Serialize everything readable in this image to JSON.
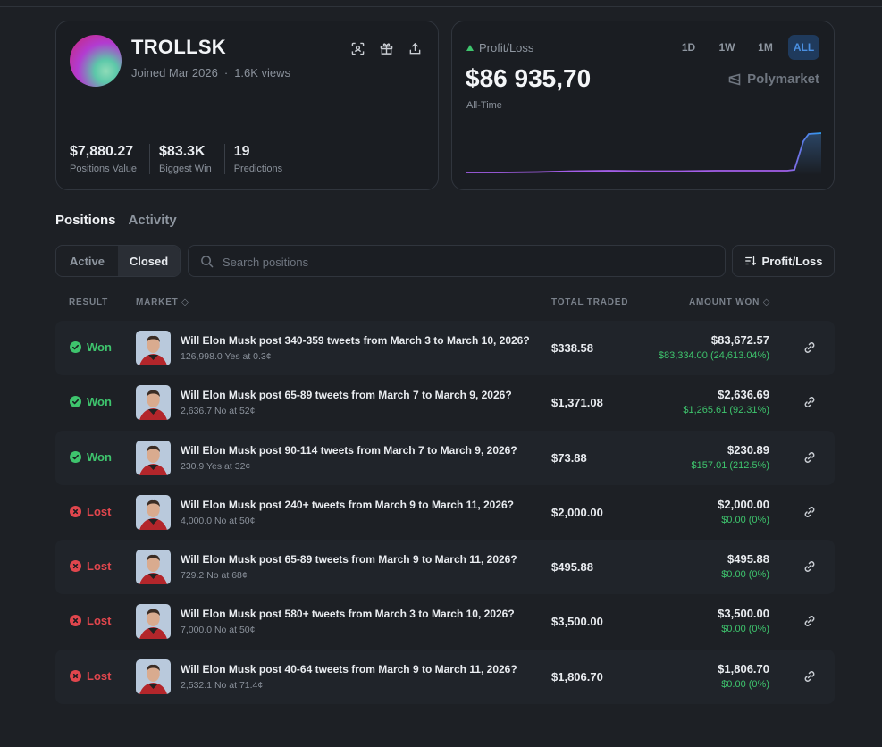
{
  "profile": {
    "name": "TROLLSK",
    "joined": "Joined Mar 2026",
    "views": "1.6K views",
    "stats": [
      {
        "value": "$7,880.27",
        "label": "Positions Value"
      },
      {
        "value": "$83.3K",
        "label": "Biggest Win"
      },
      {
        "value": "19",
        "label": "Predictions"
      }
    ],
    "icons": [
      "scan-icon",
      "gift-icon",
      "share-icon"
    ]
  },
  "pnl": {
    "label": "Profit/Loss",
    "value": "$86 935,70",
    "period": "All-Time",
    "ranges": [
      "1D",
      "1W",
      "1M",
      "ALL"
    ],
    "active_range": "ALL",
    "brand": "Polymarket",
    "accent": "#4a8fe0",
    "line_color": "#a35ee8"
  },
  "tabs": [
    "Positions",
    "Activity"
  ],
  "filter": {
    "active_label": "Active",
    "closed_label": "Closed"
  },
  "search": {
    "placeholder": "Search positions",
    "value": ""
  },
  "sort": {
    "label": "Profit/Loss"
  },
  "columns": {
    "result": "RESULT",
    "market": "MARKET",
    "total": "TOTAL TRADED",
    "won": "AMOUNT WON"
  },
  "rows": [
    {
      "result": "Won",
      "title": "Will Elon Musk post 340-359 tweets from March 3 to March 10, 2026?",
      "sub": "126,998.0 Yes at 0.3¢",
      "total": "$338.58",
      "amount": "$83,672.57",
      "profit": "$83,334.00 (24,613.04%)"
    },
    {
      "result": "Won",
      "title": "Will Elon Musk post 65-89 tweets from March 7 to March 9, 2026?",
      "sub": "2,636.7 No at 52¢",
      "total": "$1,371.08",
      "amount": "$2,636.69",
      "profit": "$1,265.61 (92.31%)"
    },
    {
      "result": "Won",
      "title": "Will Elon Musk post 90-114 tweets from March 7 to March 9, 2026?",
      "sub": "230.9 Yes at 32¢",
      "total": "$73.88",
      "amount": "$230.89",
      "profit": "$157.01 (212.5%)"
    },
    {
      "result": "Lost",
      "title": "Will Elon Musk post 240+ tweets from March 9 to March 11, 2026?",
      "sub": "4,000.0 No at 50¢",
      "total": "$2,000.00",
      "amount": "$2,000.00",
      "profit": "$0.00 (0%)"
    },
    {
      "result": "Lost",
      "title": "Will Elon Musk post 65-89 tweets from March 9 to March 11, 2026?",
      "sub": "729.2 No at 68¢",
      "total": "$495.88",
      "amount": "$495.88",
      "profit": "$0.00 (0%)"
    },
    {
      "result": "Lost",
      "title": "Will Elon Musk post 580+ tweets from March 3 to March 10, 2026?",
      "sub": "7,000.0 No at 50¢",
      "total": "$3,500.00",
      "amount": "$3,500.00",
      "profit": "$0.00 (0%)"
    },
    {
      "result": "Lost",
      "title": "Will Elon Musk post 40-64 tweets from March 9 to March 11, 2026?",
      "sub": "2,532.1 No at 71.4¢",
      "total": "$1,806.70",
      "amount": "$1,806.70",
      "profit": "$0.00 (0%)"
    }
  ]
}
